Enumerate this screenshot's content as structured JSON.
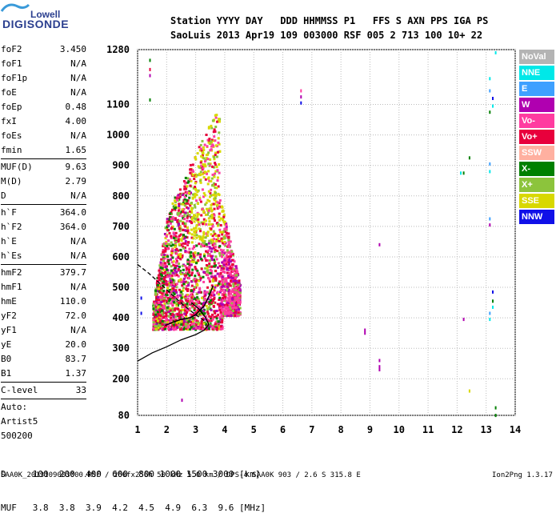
{
  "logo": {
    "line1": "Lowell",
    "line2": "DIGISONDE"
  },
  "header": {
    "row1": "Station YYYY DAY   DDD HHMMSS P1   FFS S AXN PPS IGA PS",
    "row2": "SaoLuis 2013 Apr19 109 003000 RSF 005 2 713 100 10+ 22"
  },
  "params": [
    {
      "name": "foF2",
      "value": "3.450"
    },
    {
      "name": "foF1",
      "value": "N/A"
    },
    {
      "name": "foF1p",
      "value": "N/A"
    },
    {
      "name": "foE",
      "value": "N/A"
    },
    {
      "name": "foEp",
      "value": "0.48"
    },
    {
      "name": "fxI",
      "value": "4.00"
    },
    {
      "name": "foEs",
      "value": "N/A"
    },
    {
      "name": "fmin",
      "value": "1.65",
      "divider_after": true
    },
    {
      "name": "MUF(D)",
      "value": "9.63"
    },
    {
      "name": "M(D)",
      "value": "2.79"
    },
    {
      "name": "D",
      "value": "N/A",
      "divider_after": true
    },
    {
      "name": "h`F",
      "value": "364.0"
    },
    {
      "name": "h`F2",
      "value": "364.0"
    },
    {
      "name": "h`E",
      "value": "N/A"
    },
    {
      "name": "h`Es",
      "value": "N/A",
      "divider_after": true
    },
    {
      "name": "hmF2",
      "value": "379.7"
    },
    {
      "name": "hmF1",
      "value": "N/A"
    },
    {
      "name": "hmE",
      "value": "110.0"
    },
    {
      "name": "yF2",
      "value": "72.0"
    },
    {
      "name": "yF1",
      "value": "N/A"
    },
    {
      "name": "yE",
      "value": "20.0"
    },
    {
      "name": "B0",
      "value": "83.7"
    },
    {
      "name": "B1",
      "value": "1.37",
      "divider_after": true
    },
    {
      "name": "C-level",
      "value": "33",
      "divider_after": true
    },
    {
      "name": "Auto:",
      "value": ""
    },
    {
      "name": "Artist5",
      "value": ""
    },
    {
      "name": "500200",
      "value": ""
    }
  ],
  "legend": [
    {
      "label": "NoVal",
      "color": "#b4b4b4"
    },
    {
      "label": "NNE",
      "color": "#00e8e8"
    },
    {
      "label": "E",
      "color": "#3ea0ff"
    },
    {
      "label": "W",
      "color": "#b000b0"
    },
    {
      "label": "Vo-",
      "color": "#ff3ca0"
    },
    {
      "label": "Vo+",
      "color": "#e8003c"
    },
    {
      "label": "SSW",
      "color": "#ffb0a0"
    },
    {
      "label": "X-",
      "color": "#008000"
    },
    {
      "label": "X+",
      "color": "#8cc43c"
    },
    {
      "label": "SSE",
      "color": "#d8d800"
    },
    {
      "label": "NNW",
      "color": "#1010e8"
    }
  ],
  "muf_table": {
    "d_row": "D     100  200  400  600  800 1000 1500 3000 [km]",
    "muf_row": "MUF   3.8  3.8  3.9  4.2  4.5  4.9  6.3  9.6 [MHz]"
  },
  "footer": {
    "left": "SAA0K_2013109003000.RSF / 260fx256h 50 kHz 5.0 km / DPS-4 SAA0K 903 / 2.6 S 315.8 E",
    "right": "Ion2Png 1.3.17"
  },
  "chart_data": {
    "type": "scatter",
    "xlim": [
      1,
      14
    ],
    "ylim": [
      80,
      1280
    ],
    "x_ticks": [
      1,
      2,
      3,
      4,
      5,
      6,
      7,
      8,
      9,
      10,
      11,
      12,
      13,
      14
    ],
    "y_ticks": [
      80,
      200,
      300,
      400,
      500,
      600,
      700,
      800,
      900,
      1000,
      1100,
      1280
    ],
    "grid": true,
    "profile_solid": [
      [
        1,
        258
      ],
      [
        1.5,
        285
      ],
      [
        2,
        305
      ],
      [
        2.5,
        328
      ],
      [
        3,
        345
      ],
      [
        3.3,
        360
      ],
      [
        3.45,
        378
      ],
      [
        3.35,
        400
      ],
      [
        3.1,
        430
      ],
      [
        2.85,
        450
      ]
    ],
    "profile_dashed": [
      [
        1,
        575
      ],
      [
        1.4,
        545
      ],
      [
        1.8,
        510
      ],
      [
        2.2,
        475
      ],
      [
        2.6,
        440
      ],
      [
        3.0,
        410
      ],
      [
        3.3,
        390
      ]
    ],
    "trace_black": [
      [
        1.95,
        375
      ],
      [
        2.2,
        385
      ],
      [
        2.5,
        395
      ],
      [
        2.8,
        400
      ],
      [
        3.0,
        410
      ],
      [
        3.3,
        440
      ],
      [
        3.45,
        470
      ],
      [
        3.6,
        505
      ]
    ],
    "scatter_points": [
      {
        "x": 1.4,
        "y": 1250,
        "c": 7
      },
      {
        "x": 1.4,
        "y": 1220,
        "c": 5
      },
      {
        "x": 1.4,
        "y": 1200,
        "c": 3
      },
      {
        "x": 1.4,
        "y": 1120,
        "c": 7
      },
      {
        "x": 1.1,
        "y": 470,
        "c": 10
      },
      {
        "x": 1.1,
        "y": 420,
        "c": 10
      },
      {
        "x": 6.6,
        "y": 1150,
        "c": 4
      },
      {
        "x": 6.6,
        "y": 1130,
        "c": 3
      },
      {
        "x": 6.6,
        "y": 1110,
        "c": 10
      },
      {
        "x": 8.8,
        "y": 365,
        "c": 3
      },
      {
        "x": 8.8,
        "y": 355,
        "c": 3
      },
      {
        "x": 9.3,
        "y": 645,
        "c": 3
      },
      {
        "x": 9.3,
        "y": 265,
        "c": 3
      },
      {
        "x": 9.3,
        "y": 245,
        "c": 3
      },
      {
        "x": 9.3,
        "y": 235,
        "c": 3
      },
      {
        "x": 12.1,
        "y": 880,
        "c": 1
      },
      {
        "x": 12.2,
        "y": 880,
        "c": 7
      },
      {
        "x": 12.4,
        "y": 930,
        "c": 7
      },
      {
        "x": 12.2,
        "y": 400,
        "c": 3
      },
      {
        "x": 12.4,
        "y": 165,
        "c": 9
      },
      {
        "x": 2.5,
        "y": 135,
        "c": 3
      },
      {
        "x": 13.1,
        "y": 1190,
        "c": 1
      },
      {
        "x": 13.1,
        "y": 1150,
        "c": 2
      },
      {
        "x": 13.2,
        "y": 1125,
        "c": 10
      },
      {
        "x": 13.2,
        "y": 1100,
        "c": 1
      },
      {
        "x": 13.1,
        "y": 1080,
        "c": 7
      },
      {
        "x": 13.1,
        "y": 910,
        "c": 2
      },
      {
        "x": 13.1,
        "y": 885,
        "c": 1
      },
      {
        "x": 13.1,
        "y": 730,
        "c": 2
      },
      {
        "x": 13.1,
        "y": 710,
        "c": 3
      },
      {
        "x": 13.2,
        "y": 490,
        "c": 10
      },
      {
        "x": 13.2,
        "y": 460,
        "c": 7
      },
      {
        "x": 13.2,
        "y": 440,
        "c": 1
      },
      {
        "x": 13.1,
        "y": 420,
        "c": 2
      },
      {
        "x": 13.1,
        "y": 400,
        "c": 1
      },
      {
        "x": 13.3,
        "y": 1275,
        "c": 1
      },
      {
        "x": 13.3,
        "y": 110,
        "c": 7
      },
      {
        "x": 13.3,
        "y": 85,
        "c": 7
      }
    ],
    "main_cloud": {
      "note": "dense multi-mode echo region",
      "f_range": [
        1.5,
        4.5
      ],
      "h_range": [
        360,
        1130
      ]
    }
  }
}
